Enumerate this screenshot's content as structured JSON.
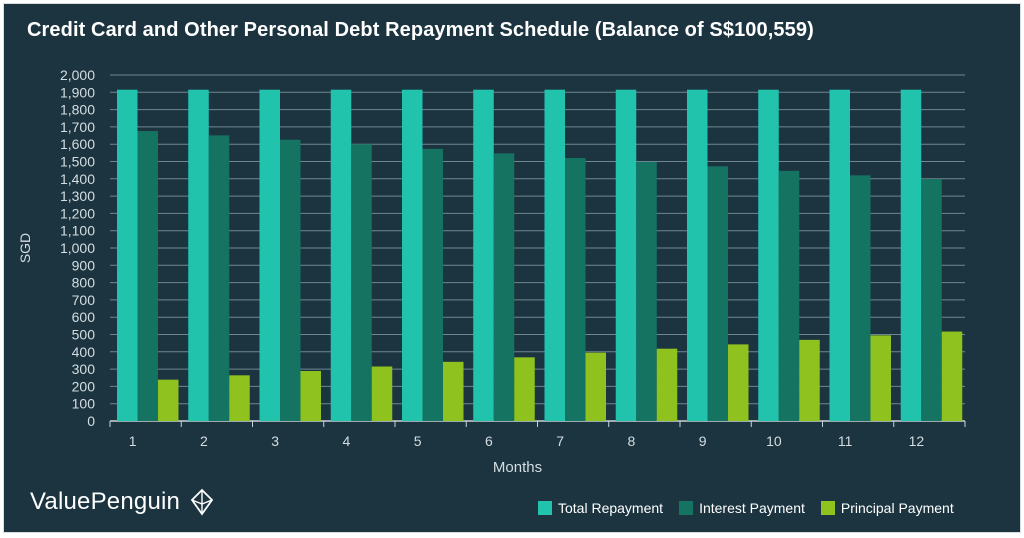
{
  "title": "Credit Card and Other Personal Debt Repayment Schedule (Balance of S$100,559)",
  "brand": {
    "name": "ValuePenguin",
    "icon": "valuepenguin-logo-icon"
  },
  "colors": {
    "background": "#1b3440",
    "grid": "#6f8791",
    "total": "#22c3ad",
    "interest": "#147461",
    "principal": "#8fc21f",
    "text": "#ffffff"
  },
  "chart_data": {
    "type": "bar",
    "title": "Credit Card and Other Personal Debt Repayment Schedule (Balance of S$100,559)",
    "xlabel": "Months",
    "ylabel": "SGD",
    "categories": [
      "1",
      "2",
      "3",
      "4",
      "5",
      "6",
      "7",
      "8",
      "9",
      "10",
      "11",
      "12"
    ],
    "ylim": [
      0,
      2000
    ],
    "yticks": [
      "0",
      "100",
      "200",
      "300",
      "400",
      "500",
      "600",
      "700",
      "800",
      "900",
      "1,000",
      "1,100",
      "1,200",
      "1,300",
      "1,400",
      "1,500",
      "1,600",
      "1,700",
      "1,800",
      "1,900",
      "2,000"
    ],
    "grid": true,
    "legend_position": "bottom-right",
    "series": [
      {
        "name": "Total Repayment",
        "values": [
          1915,
          1915,
          1915,
          1915,
          1915,
          1915,
          1915,
          1915,
          1915,
          1915,
          1915,
          1915
        ]
      },
      {
        "name": "Interest Payment",
        "values": [
          1676,
          1651,
          1626,
          1600,
          1573,
          1547,
          1520,
          1497,
          1472,
          1446,
          1420,
          1398
        ]
      },
      {
        "name": "Principal Payment",
        "values": [
          239,
          264,
          289,
          315,
          342,
          368,
          395,
          418,
          443,
          469,
          495,
          517
        ]
      }
    ]
  }
}
